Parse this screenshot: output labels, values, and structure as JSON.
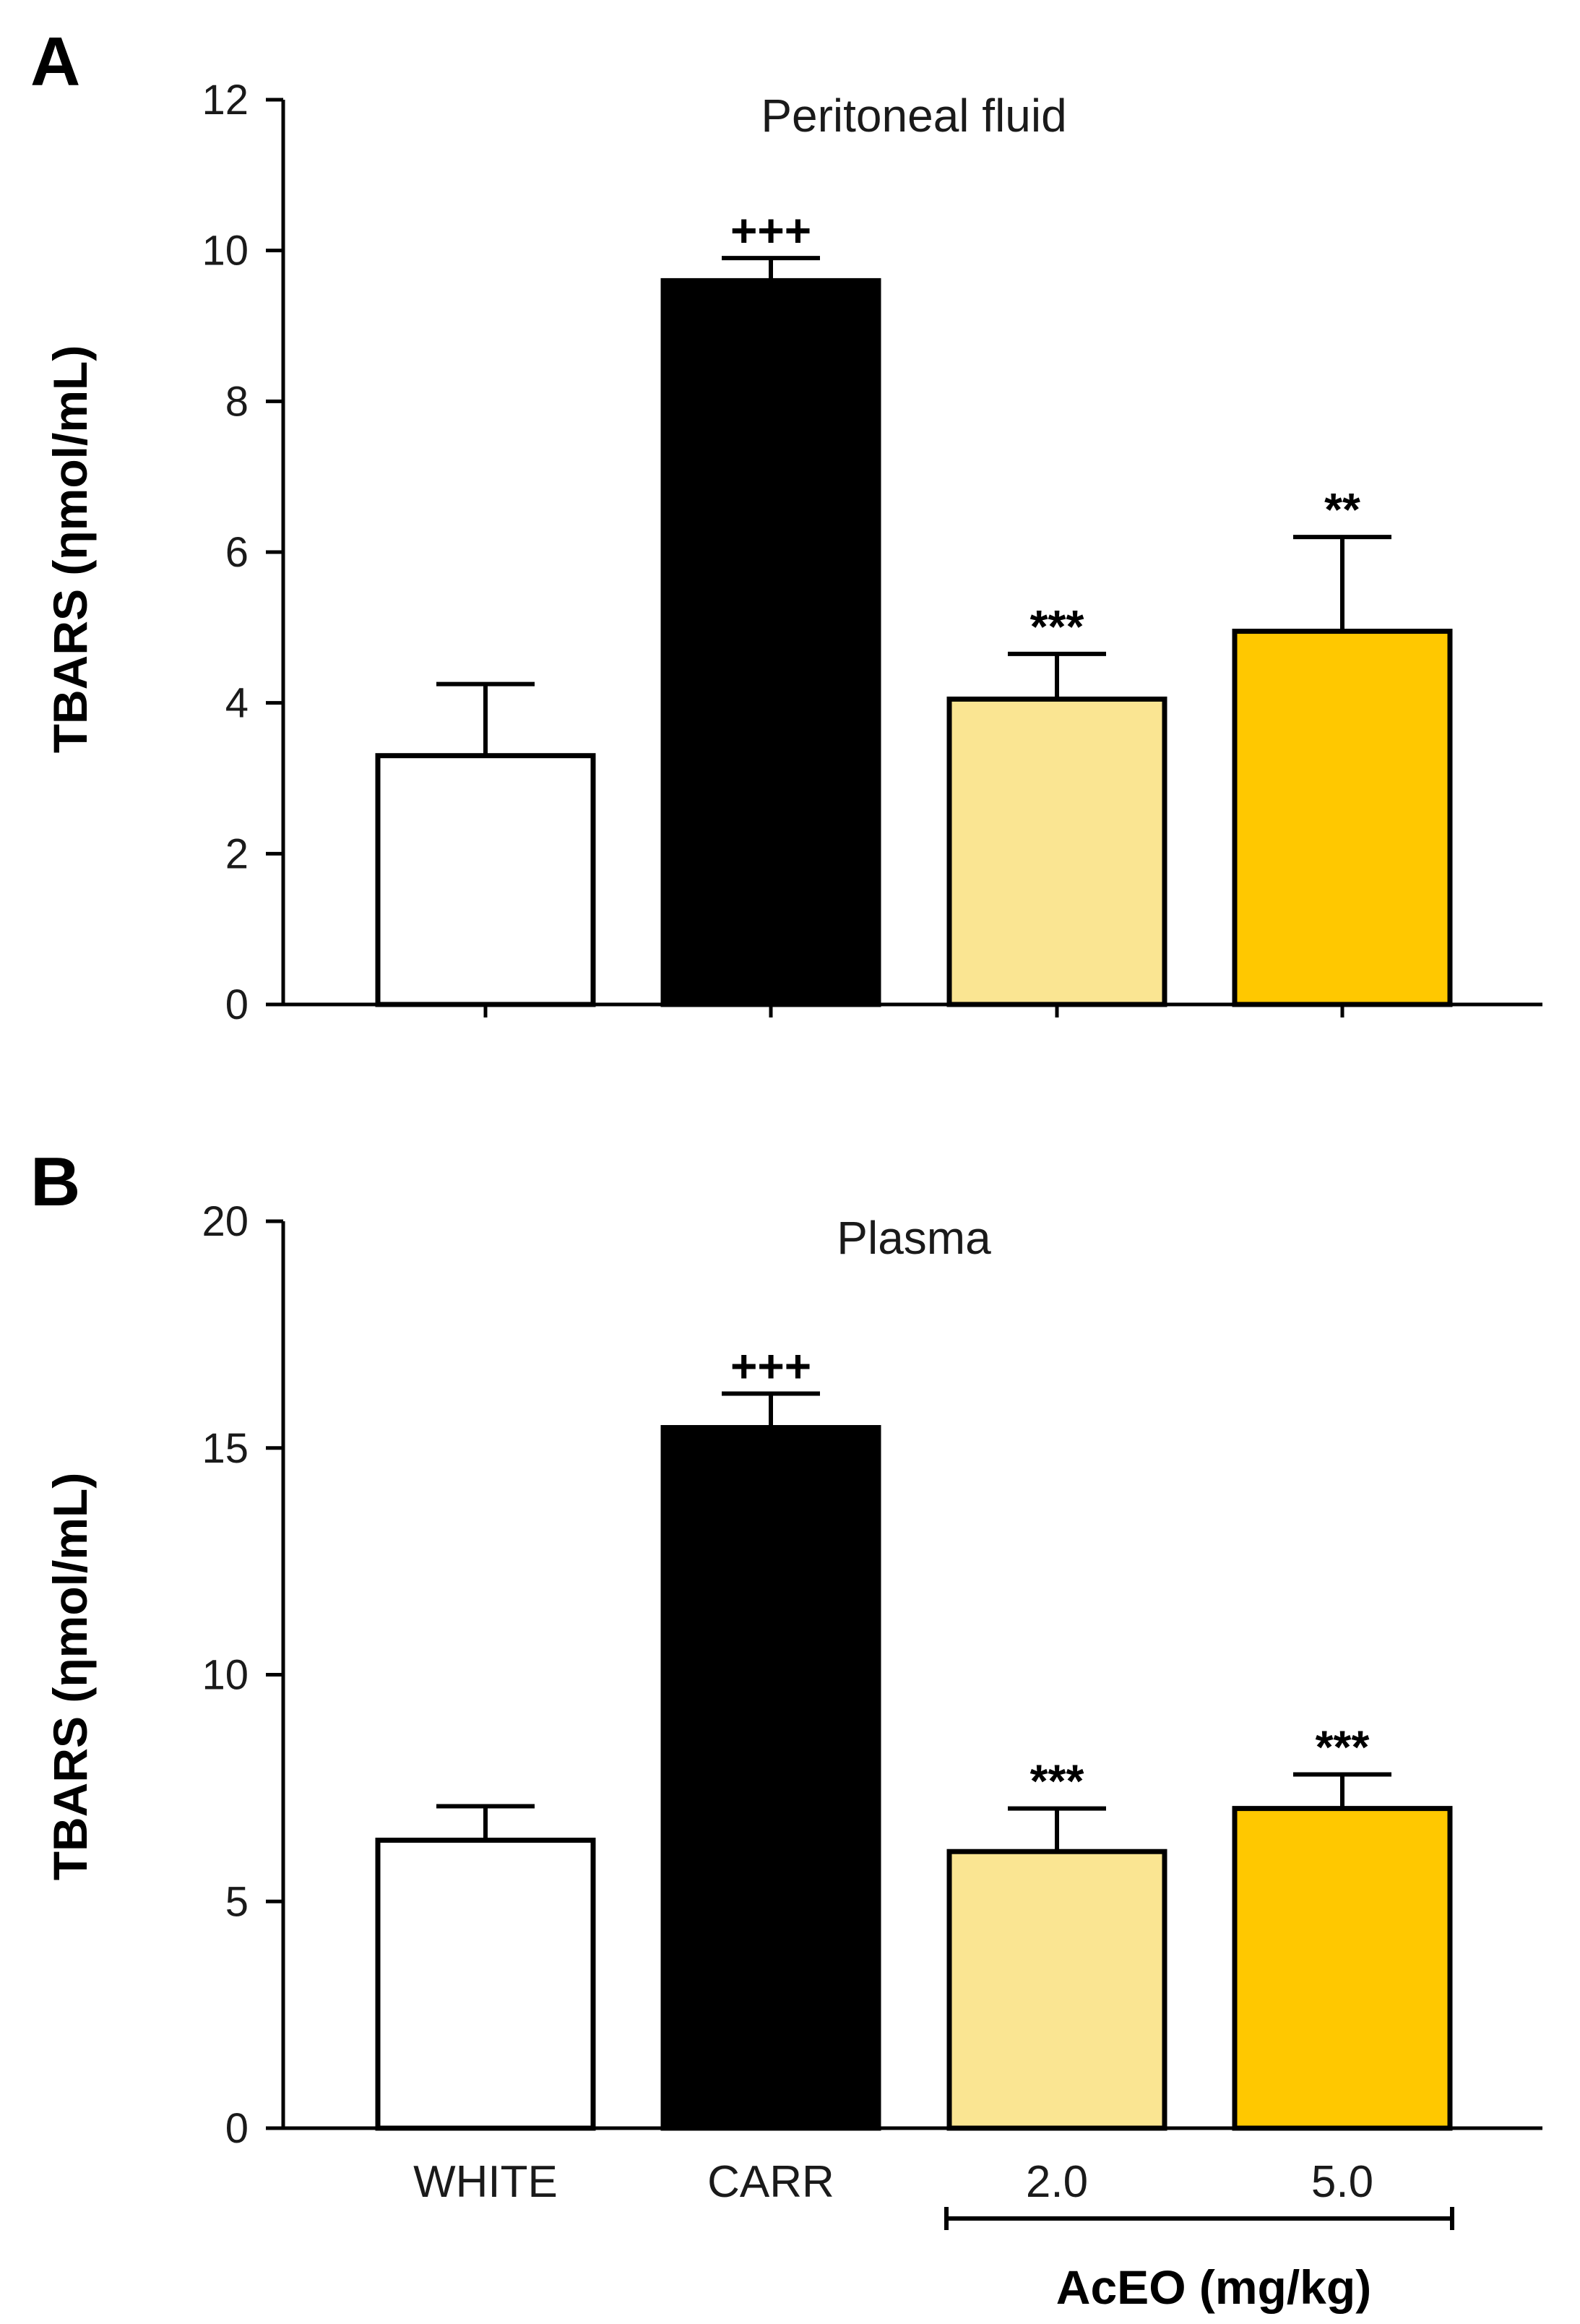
{
  "chart_data": [
    {
      "panel": "A",
      "type": "bar",
      "title": "Peritoneal fluid",
      "ylabel": "TBARS (ηmol/mL)",
      "xlabel": "",
      "ylim": [
        0,
        12
      ],
      "yticks": [
        0,
        2,
        4,
        6,
        8,
        10,
        12
      ],
      "categories": [
        "WHITE",
        "CARR",
        "2.0",
        "5.0"
      ],
      "values": [
        3.3,
        9.6,
        4.05,
        4.95
      ],
      "errors": [
        0.95,
        0.3,
        0.6,
        1.25
      ],
      "colors": [
        "#ffffff",
        "#000000",
        "#fae592",
        "#ffc800"
      ],
      "significance": [
        "",
        "+++",
        "***",
        "**"
      ],
      "show_category_labels": false
    },
    {
      "panel": "B",
      "type": "bar",
      "title": "Plasma",
      "ylabel": "TBARS (ηmol/mL)",
      "xlabel": "",
      "ylim": [
        0,
        20
      ],
      "yticks": [
        0,
        5,
        10,
        15,
        20
      ],
      "categories": [
        "WHITE",
        "CARR",
        "2.0",
        "5.0"
      ],
      "values": [
        6.35,
        15.45,
        6.1,
        7.05
      ],
      "errors": [
        0.75,
        0.75,
        0.95,
        0.75
      ],
      "colors": [
        "#ffffff",
        "#000000",
        "#fae592",
        "#ffc800"
      ],
      "significance": [
        "",
        "+++",
        "***",
        "***"
      ],
      "show_category_labels": true,
      "group_label": "AcEO (mg/kg)"
    }
  ]
}
